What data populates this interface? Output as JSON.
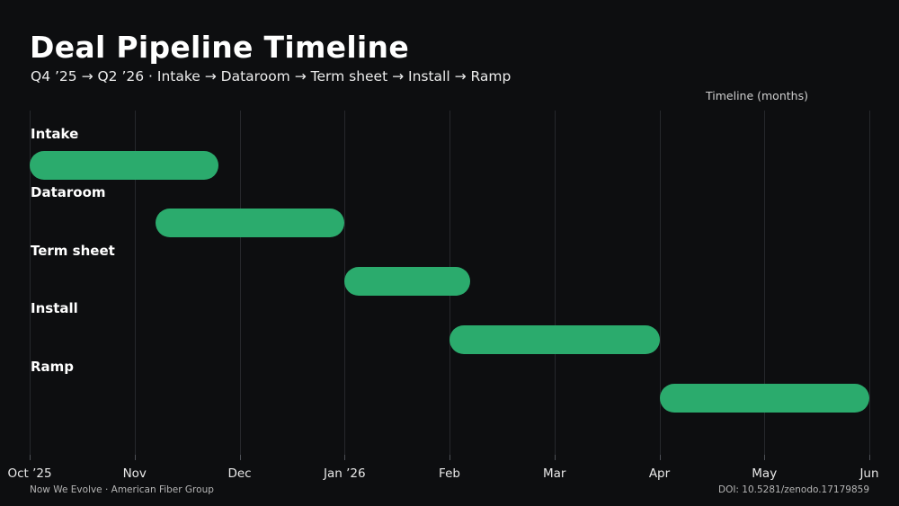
{
  "header": {
    "title": "Deal Pipeline Timeline",
    "subtitle": "Q4 ’25 → Q2 ’26 · Intake → Dataroom → Term sheet → Install → Ramp"
  },
  "axis_title": "Timeline (months)",
  "footer": {
    "left": "Now We Evolve · American Fiber Group",
    "right": "DOI: 10.5281/zenodo.17179859"
  },
  "colors": {
    "background": "#0d0e10",
    "bar": "#2bab6d",
    "gridline": "#26282c",
    "tick": "#4d5056",
    "title_text": "#ffffff",
    "subtitle_text": "#ececec",
    "axis_label_text": "#e8e8e8",
    "muted_text": "#b5b5b5"
  },
  "chart_data": {
    "type": "bar",
    "subtype": "gantt",
    "title": "Deal Pipeline Timeline",
    "subtitle": "Q4 ’25 → Q2 ’26 · Intake → Dataroom → Term sheet → Install → Ramp",
    "xlabel": "Timeline (months)",
    "x_unit": "months from Oct 1 ’25",
    "xlim": [
      0,
      8
    ],
    "grid": true,
    "legend": false,
    "bar_color": "#2bab6d",
    "x_ticks": [
      {
        "label": "Oct ’25",
        "month": 0
      },
      {
        "label": "Nov",
        "month": 1
      },
      {
        "label": "Dec",
        "month": 2
      },
      {
        "label": "Jan ’26",
        "month": 3
      },
      {
        "label": "Feb",
        "month": 4
      },
      {
        "label": "Mar",
        "month": 5
      },
      {
        "label": "Apr",
        "month": 6
      },
      {
        "label": "May",
        "month": 7
      },
      {
        "label": "Jun",
        "month": 8
      }
    ],
    "tasks": [
      {
        "name": "Intake",
        "start_month": 0.0,
        "end_month": 1.8,
        "duration_months": 1.8
      },
      {
        "name": "Dataroom",
        "start_month": 1.2,
        "end_month": 3.0,
        "duration_months": 1.8
      },
      {
        "name": "Term sheet",
        "start_month": 3.0,
        "end_month": 4.2,
        "duration_months": 1.2
      },
      {
        "name": "Install",
        "start_month": 4.0,
        "end_month": 6.0,
        "duration_months": 2.0
      },
      {
        "name": "Ramp",
        "start_month": 6.0,
        "end_month": 8.0,
        "duration_months": 2.0
      }
    ]
  }
}
